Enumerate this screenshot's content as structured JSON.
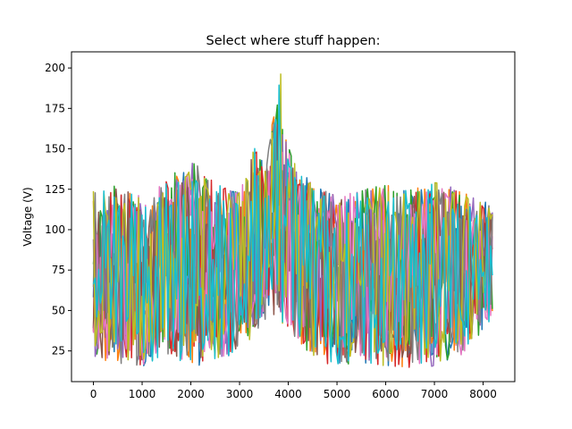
{
  "chart_data": {
    "type": "line",
    "title": "Select where stuff happen:",
    "xlabel": "",
    "ylabel": "Voltage (V)",
    "xlim": [
      -450,
      8650
    ],
    "ylim": [
      6,
      210
    ],
    "x_ticks": [
      0,
      1000,
      2000,
      3000,
      4000,
      5000,
      6000,
      7000,
      8000
    ],
    "x_tick_labels": [
      "0",
      "1000",
      "2000",
      "3000",
      "4000",
      "5000",
      "6000",
      "7000",
      "8000"
    ],
    "y_ticks": [
      25,
      50,
      75,
      100,
      125,
      150,
      175,
      200
    ],
    "y_tick_labels": [
      "25",
      "50",
      "75",
      "100",
      "125",
      "150",
      "175",
      "200"
    ],
    "grid": false,
    "legend": "none",
    "x_range": [
      0,
      8190
    ],
    "envelope": {
      "x": [
        0,
        500,
        1000,
        1500,
        2000,
        2500,
        3000,
        3300,
        3600,
        3850,
        3900,
        4100,
        4500,
        5000,
        5500,
        6000,
        6500,
        7000,
        7500,
        8190
      ],
      "upper": [
        125,
        128,
        122,
        130,
        145,
        128,
        125,
        150,
        155,
        198,
        160,
        145,
        130,
        120,
        125,
        128,
        125,
        130,
        125,
        115
      ],
      "lower": [
        20,
        17,
        15,
        22,
        15,
        18,
        25,
        35,
        45,
        42,
        40,
        35,
        20,
        15,
        18,
        15,
        14,
        15,
        20,
        45
      ]
    },
    "series": [
      {
        "color": "#1f77b4"
      },
      {
        "color": "#ff7f0e"
      },
      {
        "color": "#2ca02c"
      },
      {
        "color": "#d62728"
      },
      {
        "color": "#9467bd"
      },
      {
        "color": "#8c564b"
      },
      {
        "color": "#e377c2"
      },
      {
        "color": "#7f7f7f"
      },
      {
        "color": "#bcbd22"
      },
      {
        "color": "#17becf"
      }
    ]
  }
}
